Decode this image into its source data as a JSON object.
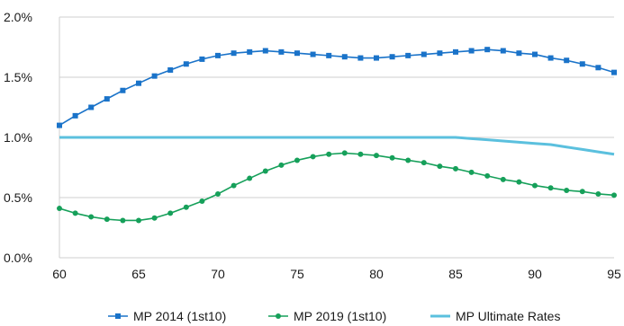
{
  "chart_data": {
    "type": "line",
    "xlabel": "",
    "ylabel": "",
    "xlim": [
      60,
      95
    ],
    "ylim": [
      0.0,
      2.0
    ],
    "x_ticks": [
      60,
      65,
      70,
      75,
      80,
      85,
      90,
      95
    ],
    "y_ticks": [
      "0.0%",
      "0.5%",
      "1.0%",
      "1.5%",
      "2.0%"
    ],
    "y_tick_values": [
      0.0,
      0.5,
      1.0,
      1.5,
      2.0
    ],
    "grid": "horizontal",
    "legend_position": "bottom",
    "x": [
      60,
      61,
      62,
      63,
      64,
      65,
      66,
      67,
      68,
      69,
      70,
      71,
      72,
      73,
      74,
      75,
      76,
      77,
      78,
      79,
      80,
      81,
      82,
      83,
      84,
      85,
      86,
      87,
      88,
      89,
      90,
      91,
      92,
      93,
      94,
      95
    ],
    "series": [
      {
        "name": "MP 2014 (1st10)",
        "color": "#1a73c9",
        "marker": "square",
        "values": [
          1.1,
          1.18,
          1.25,
          1.32,
          1.39,
          1.45,
          1.51,
          1.56,
          1.61,
          1.65,
          1.68,
          1.7,
          1.71,
          1.72,
          1.71,
          1.7,
          1.69,
          1.68,
          1.67,
          1.66,
          1.66,
          1.67,
          1.68,
          1.69,
          1.7,
          1.71,
          1.72,
          1.73,
          1.72,
          1.7,
          1.69,
          1.66,
          1.64,
          1.61,
          1.58,
          1.54
        ]
      },
      {
        "name": "MP 2019 (1st10)",
        "color": "#16a05a",
        "marker": "circle",
        "values": [
          0.41,
          0.37,
          0.34,
          0.32,
          0.31,
          0.31,
          0.33,
          0.37,
          0.42,
          0.47,
          0.53,
          0.6,
          0.66,
          0.72,
          0.77,
          0.81,
          0.84,
          0.86,
          0.87,
          0.86,
          0.85,
          0.83,
          0.81,
          0.79,
          0.76,
          0.74,
          0.71,
          0.68,
          0.65,
          0.63,
          0.6,
          0.58,
          0.56,
          0.55,
          0.53,
          0.52
        ]
      },
      {
        "name": "MP Ultimate Rates",
        "color": "#5bc0de",
        "marker": "none",
        "values": [
          1.0,
          1.0,
          1.0,
          1.0,
          1.0,
          1.0,
          1.0,
          1.0,
          1.0,
          1.0,
          1.0,
          1.0,
          1.0,
          1.0,
          1.0,
          1.0,
          1.0,
          1.0,
          1.0,
          1.0,
          1.0,
          1.0,
          1.0,
          1.0,
          1.0,
          1.0,
          0.99,
          0.98,
          0.97,
          0.96,
          0.95,
          0.94,
          0.92,
          0.9,
          0.88,
          0.86
        ]
      }
    ]
  }
}
